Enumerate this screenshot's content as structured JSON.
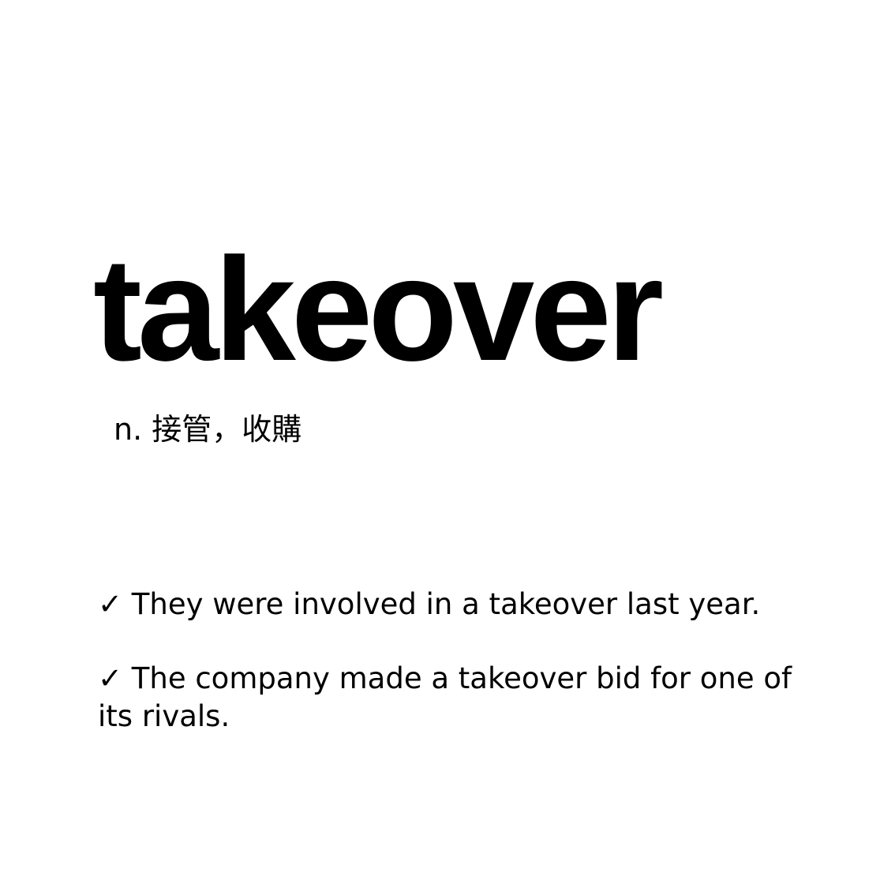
{
  "entry": {
    "word": "takeover",
    "definition": "n. 接管，收購"
  },
  "examples": [
    "✓ They were involved in a takeover last year.",
    "✓ The company made a takeover bid for one of its rivals."
  ]
}
